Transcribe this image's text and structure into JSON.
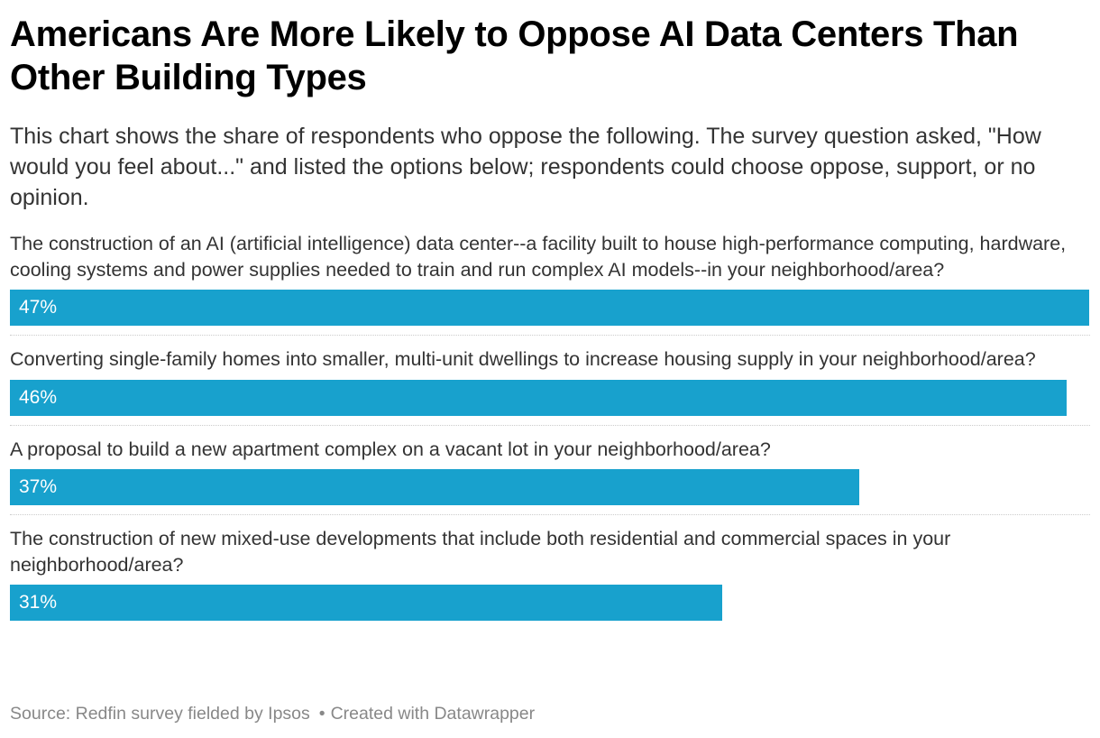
{
  "title": "Americans Are More Likely to Oppose AI Data Centers Than Other Building Types",
  "subtitle": "This chart shows the share of respondents who oppose the following. The survey question asked, \"How would you feel about...\" and listed the options below; respondents could choose oppose, support, or no opinion.",
  "chart_data": {
    "type": "bar",
    "orientation": "horizontal",
    "categories": [
      "The construction of an AI (artificial intelligence) data center--a facility built to house high-performance computing, hardware, cooling systems and power supplies needed to train and run complex AI models--in your neighborhood/area?",
      "Converting single-family homes into smaller, multi-unit dwellings to increase housing supply in your neighborhood/area?",
      "A proposal to build a new apartment complex on a vacant lot in your neighborhood/area?",
      "The construction of new mixed-use developments that include both residential and commercial spaces in your neighborhood/area?"
    ],
    "values": [
      47,
      46,
      37,
      31
    ],
    "value_labels": [
      "47%",
      "46%",
      "37%",
      "31%"
    ],
    "bar_color": "#18a1cd",
    "xlim": [
      0,
      47
    ]
  },
  "footer": {
    "source": "Source: Redfin survey fielded by Ipsos",
    "separator": "•",
    "credit": "Created with Datawrapper"
  }
}
